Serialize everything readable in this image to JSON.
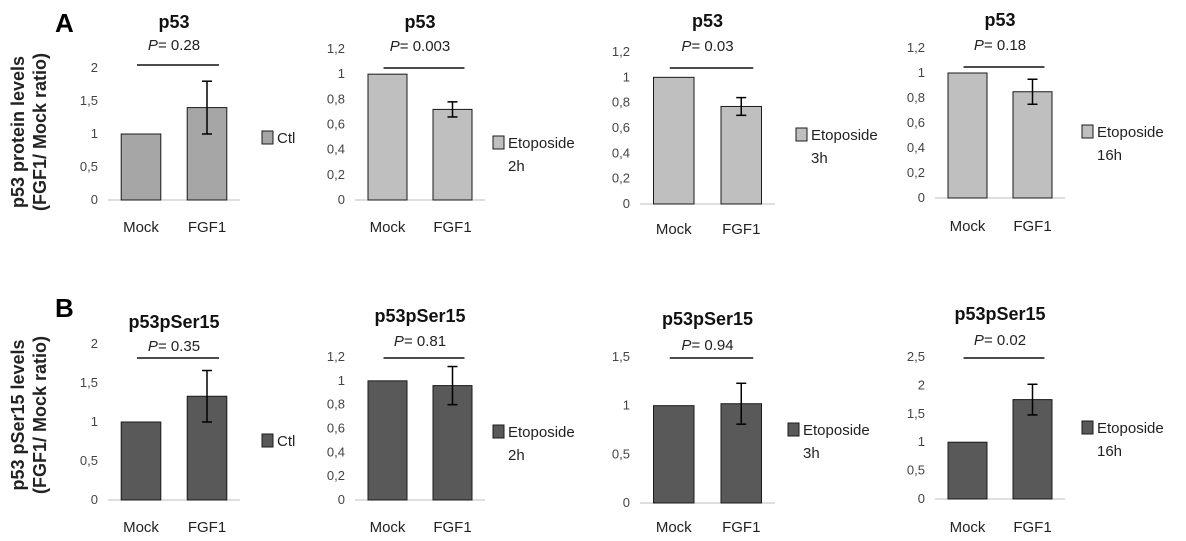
{
  "panels": [
    {
      "letter": "A",
      "ylabel": [
        "p53 protein levels",
        "(FGF1/ Mock ratio)"
      ],
      "color": "#a6a6a6",
      "colorSoft": "#bfbfbf"
    },
    {
      "letter": "B",
      "ylabel": [
        "p53 pSer15 levels",
        "(FGF1/ Mock ratio)"
      ],
      "color": "#595959",
      "colorSoft": "#595959"
    }
  ],
  "p_prefix": "P",
  "chart_data": [
    {
      "type": "bar",
      "title": "p53",
      "categories": [
        "Mock",
        "FGF1"
      ],
      "values": [
        1,
        1.4
      ],
      "error": [
        0,
        0.4
      ],
      "p_value": "= 0.28",
      "ylim": [
        0,
        2
      ],
      "yticks": [
        "0",
        "0,5",
        "1",
        "1,5",
        "2"
      ],
      "legend": [
        "Ctl"
      ],
      "bar_color": "#a6a6a6"
    },
    {
      "type": "bar",
      "title": "p53",
      "categories": [
        "Mock",
        "FGF1"
      ],
      "values": [
        1,
        0.72
      ],
      "error": [
        0,
        0.06
      ],
      "p_value": "= 0.003",
      "ylim": [
        0,
        1.2
      ],
      "yticks": [
        "0",
        "0,2",
        "0,4",
        "0,6",
        "0,8",
        "1",
        "1,2"
      ],
      "legend": [
        "Etoposide",
        "2h"
      ],
      "bar_color": "#bfbfbf"
    },
    {
      "type": "bar",
      "title": "p53",
      "categories": [
        "Mock",
        "FGF1"
      ],
      "values": [
        1,
        0.77
      ],
      "error": [
        0,
        0.07
      ],
      "p_value": "= 0.03",
      "ylim": [
        0,
        1.2
      ],
      "yticks": [
        "0",
        "0,2",
        "0,4",
        "0,6",
        "0,8",
        "1",
        "1,2"
      ],
      "legend": [
        "Etoposide",
        "3h"
      ],
      "bar_color": "#bfbfbf"
    },
    {
      "type": "bar",
      "title": "p53",
      "categories": [
        "Mock",
        "FGF1"
      ],
      "values": [
        1,
        0.85
      ],
      "error": [
        0,
        0.1
      ],
      "p_value": "= 0.18",
      "ylim": [
        0,
        1.2
      ],
      "yticks": [
        "0",
        "0,2",
        "0,4",
        "0,6",
        "0,8",
        "1",
        "1,2"
      ],
      "legend": [
        "Etoposide",
        "16h"
      ],
      "bar_color": "#bfbfbf"
    },
    {
      "type": "bar",
      "title": "p53pSer15",
      "categories": [
        "Mock",
        "FGF1"
      ],
      "values": [
        1,
        1.33
      ],
      "error": [
        0,
        0.33
      ],
      "p_value": "= 0.35",
      "ylim": [
        0,
        2
      ],
      "yticks": [
        "0",
        "0,5",
        "1",
        "1,5",
        "2"
      ],
      "legend": [
        "Ctl"
      ],
      "bar_color": "#595959"
    },
    {
      "type": "bar",
      "title": "p53pSer15",
      "categories": [
        "Mock",
        "FGF1"
      ],
      "values": [
        1,
        0.96
      ],
      "error": [
        0,
        0.16
      ],
      "p_value": "= 0.81",
      "ylim": [
        0,
        1.2
      ],
      "yticks": [
        "0",
        "0,2",
        "0,4",
        "0,6",
        "0,8",
        "1",
        "1,2"
      ],
      "legend": [
        "Etoposide",
        "2h"
      ],
      "bar_color": "#595959"
    },
    {
      "type": "bar",
      "title": "p53pSer15",
      "categories": [
        "Mock",
        "FGF1"
      ],
      "values": [
        1,
        1.02
      ],
      "error": [
        0,
        0.21
      ],
      "p_value": "= 0.94",
      "ylim": [
        0,
        1.5
      ],
      "yticks": [
        "0",
        "0,5",
        "1",
        "1,5"
      ],
      "legend": [
        "Etoposide",
        "3h"
      ],
      "bar_color": "#595959"
    },
    {
      "type": "bar",
      "title": "p53pSer15",
      "categories": [
        "Mock",
        "FGF1"
      ],
      "values": [
        1,
        1.75
      ],
      "error": [
        0,
        0.27
      ],
      "p_value": "= 0.02",
      "ylim": [
        0,
        2.5
      ],
      "yticks": [
        "0",
        "0,5",
        "1",
        "1,5",
        "2",
        "2,5"
      ],
      "legend": [
        "Etoposide",
        "16h"
      ],
      "bar_color": "#595959"
    }
  ]
}
